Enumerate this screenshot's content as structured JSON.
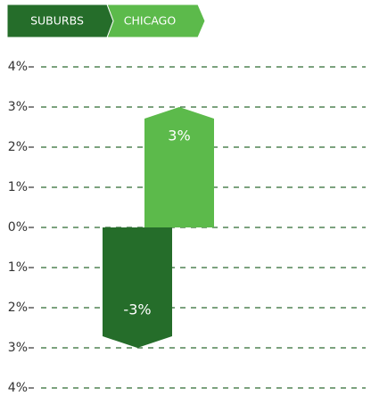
{
  "chart_data": {
    "type": "bar",
    "series": [
      {
        "name": "SUBURBS",
        "color": "#256d2a",
        "values": [
          -3
        ],
        "value_labels": [
          "-3%"
        ]
      },
      {
        "name": "CHICAGO",
        "color": "#5cba4b",
        "values": [
          3
        ],
        "value_labels": [
          "3%"
        ]
      }
    ],
    "ylim": [
      -4,
      4
    ],
    "yticks": [
      {
        "value": 4,
        "label": "4%"
      },
      {
        "value": 3,
        "label": "3%"
      },
      {
        "value": 2,
        "label": "2%"
      },
      {
        "value": 1,
        "label": "1%"
      },
      {
        "value": 0,
        "label": "0%"
      },
      {
        "value": -1,
        "label": "1%"
      },
      {
        "value": -2,
        "label": "2%"
      },
      {
        "value": -3,
        "label": "3%"
      },
      {
        "value": -4,
        "label": "4%"
      }
    ],
    "grid": true
  }
}
